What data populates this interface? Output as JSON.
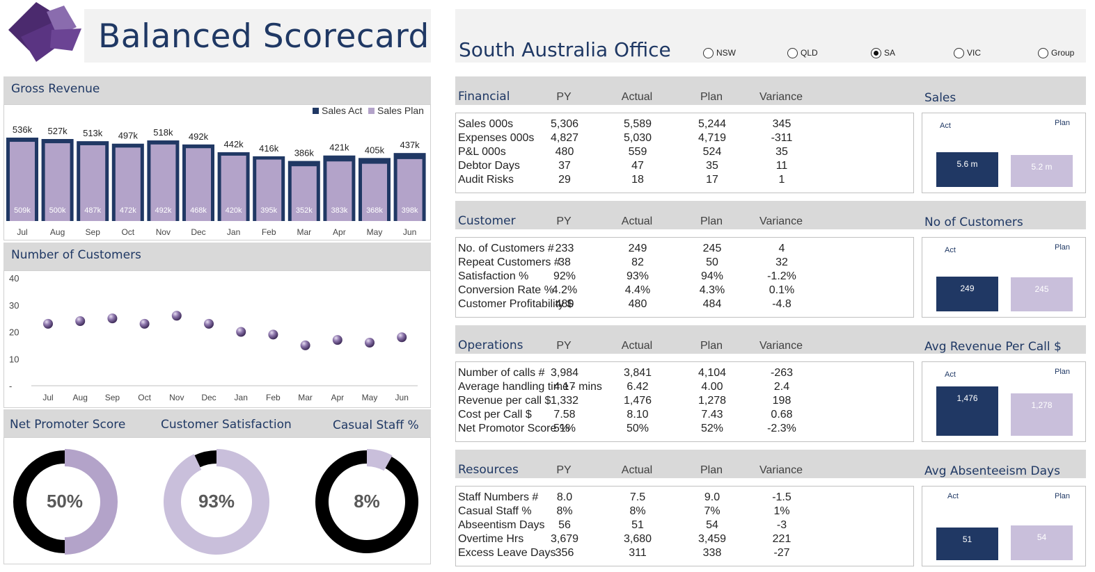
{
  "header": {
    "title": "Balanced Scorecard",
    "office_title": "South Australia Office",
    "regions": [
      {
        "label": "NSW",
        "selected": false
      },
      {
        "label": "QLD",
        "selected": false
      },
      {
        "label": "SA",
        "selected": true
      },
      {
        "label": "VIC",
        "selected": false
      },
      {
        "label": "Group",
        "selected": false
      }
    ]
  },
  "colors": {
    "navy": "#203864",
    "lilac": "#b3a3c9",
    "lilac_light": "#c9bfdb",
    "grey_header": "#d9d9d9",
    "title_blue": "#1f3864"
  },
  "gross_revenue": {
    "title": "Gross Revenue",
    "legend": [
      "Sales Act",
      "Sales Plan"
    ]
  },
  "customers_chart": {
    "title": "Number of Customers"
  },
  "gauges": {
    "nps": {
      "title": "Net Promoter Score",
      "label": "50%"
    },
    "csat": {
      "title": "Customer Satisfaction",
      "label": "93%"
    },
    "casual": {
      "title": "Casual Staff %",
      "label": "8%"
    }
  },
  "chart_data": [
    {
      "type": "bar",
      "title": "Gross Revenue",
      "categories": [
        "Jul",
        "Aug",
        "Sep",
        "Oct",
        "Nov",
        "Dec",
        "Jan",
        "Feb",
        "Mar",
        "Apr",
        "May",
        "Jun"
      ],
      "series": [
        {
          "name": "Sales Act",
          "values": [
            536,
            527,
            513,
            497,
            518,
            492,
            442,
            416,
            386,
            421,
            405,
            437
          ],
          "labels": [
            "536k",
            "527k",
            "513k",
            "497k",
            "518k",
            "492k",
            "442k",
            "416k",
            "386k",
            "421k",
            "405k",
            "437k"
          ]
        },
        {
          "name": "Sales Plan",
          "values": [
            509,
            500,
            487,
            472,
            492,
            468,
            420,
            395,
            352,
            383,
            368,
            398
          ],
          "labels": [
            "509k",
            "500k",
            "487k",
            "472k",
            "492k",
            "468k",
            "420k",
            "395k",
            "352k",
            "383k",
            "368k",
            "398k"
          ]
        }
      ],
      "ylim": [
        0,
        560
      ]
    },
    {
      "type": "scatter",
      "title": "Number of Customers",
      "categories": [
        "Jul",
        "Aug",
        "Sep",
        "Oct",
        "Nov",
        "Dec",
        "Jan",
        "Feb",
        "Mar",
        "Apr",
        "May",
        "Jun"
      ],
      "values": [
        23,
        24,
        25,
        23,
        26,
        23,
        20,
        19,
        15,
        17,
        16,
        18
      ],
      "yticks": [
        "40",
        "30",
        "20",
        "10",
        "-"
      ],
      "ylim": [
        0,
        40
      ]
    },
    {
      "type": "pie",
      "title": "Net Promoter Score",
      "values": [
        50,
        50
      ]
    },
    {
      "type": "pie",
      "title": "Customer Satisfaction",
      "values": [
        93,
        7
      ]
    },
    {
      "type": "pie",
      "title": "Casual Staff %",
      "values": [
        8,
        92
      ]
    }
  ],
  "sections": [
    {
      "title": "Financial",
      "columns": [
        "PY",
        "Actual",
        "Plan",
        "Variance"
      ],
      "chart_title": "Sales",
      "rows": [
        {
          "label": "Sales 000s",
          "py": "5,306",
          "actual": "5,589",
          "plan": "5,244",
          "variance": "345"
        },
        {
          "label": "Expenses 000s",
          "py": "4,827",
          "actual": "5,030",
          "plan": "4,719",
          "variance": "-311"
        },
        {
          "label": "P&L 000s",
          "py": "480",
          "actual": "559",
          "plan": "524",
          "variance": "35"
        },
        {
          "label": "Debtor Days",
          "py": "37",
          "actual": "47",
          "plan": "35",
          "variance": "11"
        },
        {
          "label": "Audit Risks",
          "py": "29",
          "actual": "18",
          "plan": "17",
          "variance": "1"
        }
      ],
      "mini": {
        "act_label": "Act",
        "plan_label": "Plan",
        "act_value": "5.6 m",
        "plan_value": "5.2 m",
        "act_num": 5.6,
        "plan_num": 5.2
      }
    },
    {
      "title": "Customer",
      "columns": [
        "PY",
        "Actual",
        "Plan",
        "Variance"
      ],
      "chart_title": "No of Customers",
      "rows": [
        {
          "label": "No. of Customers #",
          "py": "233",
          "actual": "249",
          "plan": "245",
          "variance": "4"
        },
        {
          "label": "Repeat Customers #",
          "py": "38",
          "actual": "82",
          "plan": "50",
          "variance": "32"
        },
        {
          "label": "Satisfaction %",
          "py": "92%",
          "actual": "93%",
          "plan": "94%",
          "variance": "-1.2%"
        },
        {
          "label": "Conversion Rate %",
          "py": "4.2%",
          "actual": "4.4%",
          "plan": "4.3%",
          "variance": "0.1%"
        },
        {
          "label": "Customer Profitability $",
          "py": "480",
          "actual": "480",
          "plan": "484",
          "variance": "-4.8"
        }
      ],
      "mini": {
        "act_label": "Act",
        "plan_label": "Plan",
        "act_value": "249",
        "plan_value": "245",
        "act_num": 249,
        "plan_num": 245
      }
    },
    {
      "title": "Operations",
      "columns": [
        "PY",
        "Actual",
        "Plan",
        "Variance"
      ],
      "chart_title": "Avg Revenue Per Call $",
      "rows": [
        {
          "label": "Number of calls #",
          "py": "3,984",
          "actual": "3,841",
          "plan": "4,104",
          "variance": "-263"
        },
        {
          "label": "Average handling time - mins",
          "py": "4.17",
          "actual": "6.42",
          "plan": "4.00",
          "variance": "2.4"
        },
        {
          "label": "Revenue per call $",
          "py": "1,332",
          "actual": "1,476",
          "plan": "1,278",
          "variance": "198"
        },
        {
          "label": "Cost per Call $",
          "py": "7.58",
          "actual": "8.10",
          "plan": "7.43",
          "variance": "0.68"
        },
        {
          "label": "Net Promotor Score %",
          "py": "51%",
          "actual": "50%",
          "plan": "52%",
          "variance": "-2.3%"
        }
      ],
      "mini": {
        "act_label": "Act",
        "plan_label": "Plan",
        "act_value": "1,476",
        "plan_value": "1,278",
        "act_num": 1476,
        "plan_num": 1278
      }
    },
    {
      "title": "Resources",
      "columns": [
        "PY",
        "Actual",
        "Plan",
        "Variance"
      ],
      "chart_title": "Avg Absenteeism Days",
      "rows": [
        {
          "label": "Staff Numbers #",
          "py": "8.0",
          "actual": "7.5",
          "plan": "9.0",
          "variance": "-1.5"
        },
        {
          "label": "Casual Staff %",
          "py": "8%",
          "actual": "8%",
          "plan": "7%",
          "variance": "1%"
        },
        {
          "label": "Abseentism Days",
          "py": "56",
          "actual": "51",
          "plan": "54",
          "variance": "-3"
        },
        {
          "label": "Overtime Hrs",
          "py": "3,679",
          "actual": "3,680",
          "plan": "3,459",
          "variance": "221"
        },
        {
          "label": "Excess Leave Days",
          "py": "356",
          "actual": "311",
          "plan": "338",
          "variance": "-27"
        }
      ],
      "mini": {
        "act_label": "Act",
        "plan_label": "Plan",
        "act_value": "51",
        "plan_value": "54",
        "act_num": 51,
        "plan_num": 54
      }
    }
  ]
}
